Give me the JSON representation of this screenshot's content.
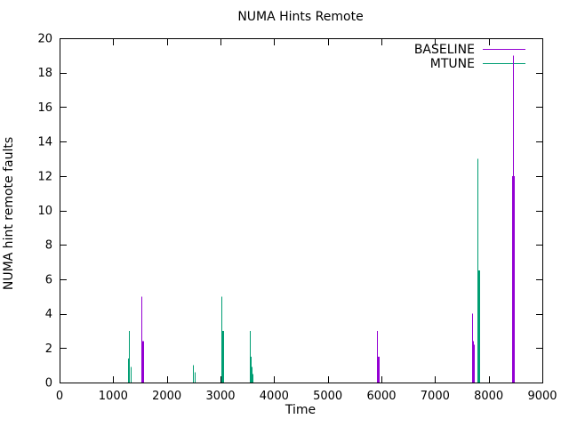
{
  "chart_data": {
    "type": "bar",
    "style": "impulses",
    "title": "NUMA Hints Remote",
    "xlabel": "Time",
    "ylabel": "NUMA hint remote faults",
    "xlim": [
      0,
      9000
    ],
    "ylim": [
      0,
      20
    ],
    "xticks": [
      0,
      1000,
      2000,
      3000,
      4000,
      5000,
      6000,
      7000,
      8000,
      9000
    ],
    "yticks": [
      0,
      2,
      4,
      6,
      8,
      10,
      12,
      14,
      16,
      18,
      20
    ],
    "grid": false,
    "legend_position": "top-right-inside",
    "axis_color": "#000000",
    "text_color": "#000000",
    "background_color": "#ffffff",
    "series": [
      {
        "name": "BASELINE",
        "color": "#9400d3",
        "points": [
          [
            1520,
            5
          ],
          [
            1532,
            2.4
          ],
          [
            1544,
            2.4
          ],
          [
            1556,
            2.4
          ],
          [
            5920,
            3
          ],
          [
            5932,
            1.5
          ],
          [
            5946,
            1.5
          ],
          [
            7690,
            4
          ],
          [
            7704,
            2.4
          ],
          [
            7720,
            2.2
          ],
          [
            8440,
            12
          ],
          [
            8452,
            19
          ],
          [
            8464,
            12
          ],
          [
            8476,
            12
          ]
        ]
      },
      {
        "name": "MTUNE",
        "color": "#009e73",
        "points": [
          [
            1275,
            1.4
          ],
          [
            1287,
            3
          ],
          [
            1299,
            1.4
          ],
          [
            1318,
            0.9
          ],
          [
            2490,
            1.0
          ],
          [
            2515,
            0.6
          ],
          [
            3020,
            5
          ],
          [
            3032,
            3
          ],
          [
            3052,
            3
          ],
          [
            3550,
            3
          ],
          [
            3562,
            1.5
          ],
          [
            3578,
            0.9
          ],
          [
            3592,
            0.5
          ],
          [
            7792,
            13
          ],
          [
            7804,
            6.5
          ],
          [
            7828,
            6.5
          ]
        ]
      }
    ]
  }
}
